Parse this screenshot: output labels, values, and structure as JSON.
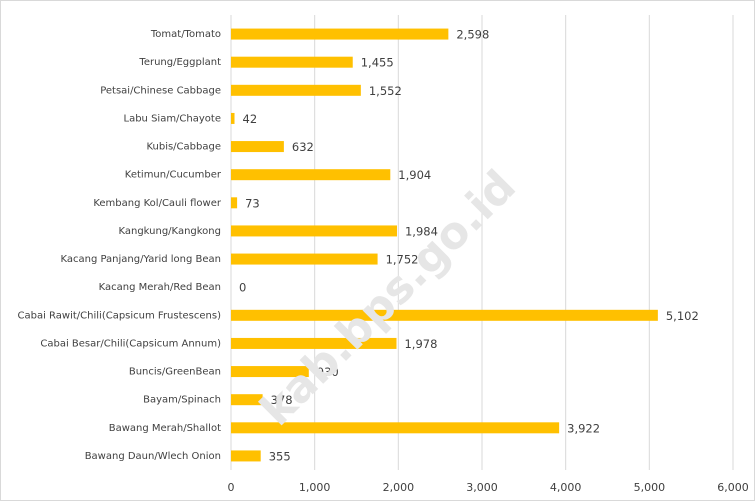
{
  "chart_data": {
    "type": "barh",
    "categories": [
      "Tomat/Tomato",
      "Terung/Eggplant",
      "Petsai/Chinese Cabbage",
      "Labu Siam/Chayote",
      "Kubis/Cabbage",
      "Ketimun/Cucumber",
      "Kembang Kol/Cauli flower",
      "Kangkung/Kangkong",
      "Kacang Panjang/Yarid long Bean",
      "Kacang Merah/Red Bean",
      "Cabai Rawit/Chili(Capsicum Frustescens)",
      "Cabai Besar/Chili(Capsicum Annum)",
      "Buncis/GreenBean",
      "Bayam/Spinach",
      "Bawang Merah/Shallot",
      "Bawang Daun/Wlech Onion"
    ],
    "values": [
      2598,
      1455,
      1552,
      42,
      632,
      1904,
      73,
      1984,
      1752,
      0,
      5102,
      1978,
      930,
      378,
      3922,
      355
    ],
    "value_labels": [
      "2,598",
      "1,455",
      "1,552",
      "42",
      "632",
      "1,904",
      "73",
      "1,984",
      "1,752",
      "0",
      "5,102",
      "1,978",
      "930",
      "378",
      "3,922",
      "355"
    ],
    "color": "#ffc000",
    "xlim": [
      0,
      6000
    ],
    "xticks": [
      0,
      {
        "value": 1000,
        "label": "1,000"
      },
      {
        "value": 2000,
        "label": "2,000"
      },
      {
        "value": 3000,
        "label": "3,000"
      },
      {
        "value": 4000,
        "label": "4,000"
      },
      {
        "value": 5000,
        "label": "5,000"
      },
      {
        "value": 6000,
        "label": "6,000"
      }
    ],
    "grid": true,
    "watermark": "kab.bps.go.id"
  }
}
